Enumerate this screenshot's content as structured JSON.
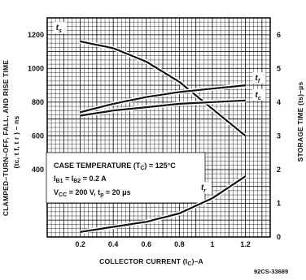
{
  "chart_data": {
    "type": "line",
    "xlabel": "COLLECTOR CURRENT (I",
    "xlabel_sub": "C",
    "xlabel_suffix": ")–A",
    "ylabel_left": "CLAMPED–TURN–OFF, FALL, AND RISE TIME",
    "ylabel_left2": "(t",
    "ylabel_left2_rest": "c, t f, t r ) – ns",
    "ylabel_right": "STORAGE TIME (t",
    "ylabel_right_rest": "s)–μs",
    "figure_code": "92CS-33689",
    "x_ticks": [
      "0.2",
      "0.4",
      "0.6",
      "0.8",
      "1",
      "1.2"
    ],
    "x_tick_values": [
      0.2,
      0.4,
      0.6,
      0.8,
      1.0,
      1.2
    ],
    "xlim": [
      0.0,
      1.35
    ],
    "y_left_ticks": [
      "1200",
      "1000",
      "800",
      "600",
      "400"
    ],
    "y_left_tick_values": [
      1200,
      1000,
      800,
      600,
      400
    ],
    "ylim_left": [
      0,
      1300
    ],
    "y_right_ticks": [
      "6",
      "5",
      "4",
      "3",
      "2",
      "1",
      "0"
    ],
    "y_right_tick_values": [
      6,
      5,
      4,
      3,
      2,
      1,
      0
    ],
    "ylim_right": [
      0,
      6.5
    ],
    "grid": true,
    "conditions": {
      "line1": "CASE TEMPERATURE (T",
      "line1_sub": "C",
      "line1_end": ") = 125°C",
      "line2": "I",
      "line2_sub1": "B1",
      "line2_mid": " = I",
      "line2_sub2": "B2",
      "line2_end": " = 0.2 A",
      "line3": "V",
      "line3_sub": "CC",
      "line3_end": " = 200 V, t",
      "line3_sub2": "p",
      "line3_end2": " = 20 μs"
    },
    "series": [
      {
        "name": "t",
        "name_sub": "s",
        "axis": "right",
        "x": [
          0.2,
          0.4,
          0.6,
          0.8,
          1.0,
          1.2
        ],
        "y": [
          5.8,
          5.6,
          5.2,
          4.6,
          3.8,
          3.0
        ]
      },
      {
        "name": "t",
        "name_sub": "f",
        "axis": "left",
        "x": [
          0.2,
          0.4,
          0.6,
          0.8,
          1.0,
          1.2
        ],
        "y": [
          740,
          790,
          830,
          860,
          880,
          900
        ]
      },
      {
        "name": "t",
        "name_sub": "c",
        "axis": "left",
        "x": [
          0.2,
          0.4,
          0.6,
          0.8,
          1.0,
          1.2
        ],
        "y": [
          720,
          750,
          770,
          790,
          800,
          810
        ]
      },
      {
        "name": "t",
        "name_sub": "r",
        "axis": "left",
        "x": [
          0.2,
          0.4,
          0.6,
          0.8,
          1.0,
          1.2
        ],
        "y": [
          30,
          60,
          90,
          140,
          230,
          360
        ]
      }
    ],
    "colors": {
      "ink": "#111111",
      "grid": "#1a1a1a",
      "paper": "#ffffff"
    }
  }
}
